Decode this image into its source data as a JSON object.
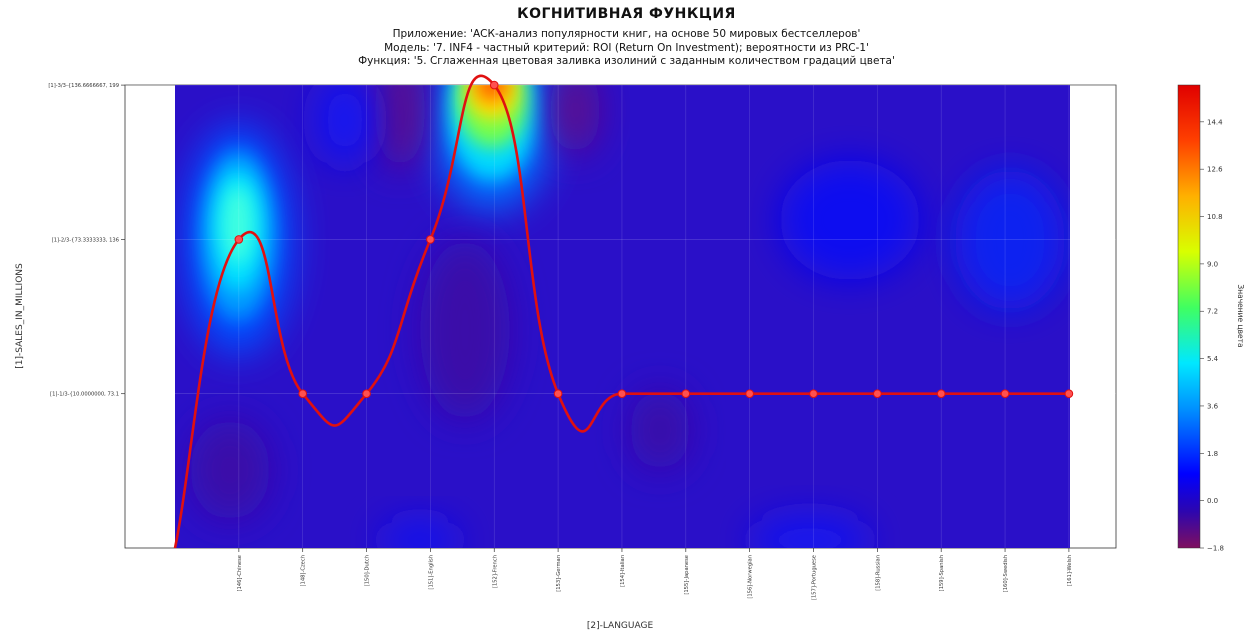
{
  "title": "КОГНИТИВНАЯ ФУНКЦИЯ",
  "subtitle_lines": [
    "Приложение: 'АСК-анализ популярности книг, на основе 50 мировых бестселлеров'",
    "Модель: '7. INF4 - частный критерий: ROI (Return On Investment); вероятности из PRC-1'",
    "Функция: '5. Сглаженная цветовая заливка изолиний с заданным количеством градаций цвета'"
  ],
  "chart_data": {
    "type": "heatmap",
    "xlabel": "[2]-LANGUAGE",
    "ylabel": "[1]-SALES_IN_MILLIONS",
    "x_ticks": [
      "[146]-Chinese",
      "[148]-Czech",
      "[150]-Dutch",
      "[151]-English",
      "[152]-French",
      "[153]-German",
      "[154]-Italian",
      "[155]-Japanese",
      "[156]-Norwegian",
      "[157]-Portuguese",
      "[158]-Russian",
      "[159]-Spanish",
      "[160]-Swedish",
      "[161]-Welsh"
    ],
    "y_ticks": [
      "[1]-1/3-{10.0000000, 73.1",
      "[1]-2/3-{73.3333333, 136",
      "[1]-3/3-{136.6666667, 199"
    ],
    "colorbar": {
      "label": "Значение цвета",
      "ticks": [
        -1.8,
        0.0,
        1.8,
        3.6,
        5.4,
        7.2,
        9.0,
        10.8,
        12.6,
        14.4
      ],
      "range": [
        -1.8,
        15.8
      ],
      "colormap": "jet"
    },
    "cognitive_function": {
      "color": "#e01010",
      "x": [
        1,
        2,
        3,
        4,
        5,
        6,
        7,
        8,
        9,
        10,
        11,
        12,
        13,
        14
      ],
      "y": [
        2,
        1,
        1,
        2,
        3,
        1,
        1,
        1,
        1,
        1,
        1,
        1,
        1,
        1
      ]
    },
    "grid": true
  }
}
